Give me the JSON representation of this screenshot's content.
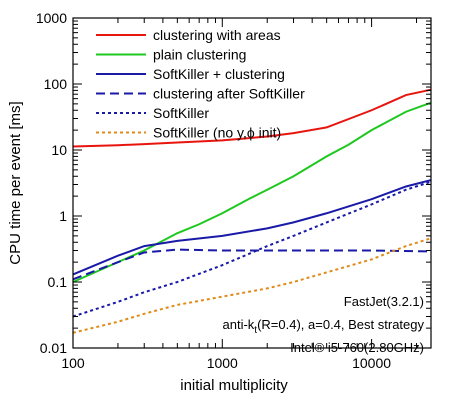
{
  "chart_data": {
    "type": "line",
    "xlabel": "initial multiplicity",
    "ylabel": "CPU time per event [ms]",
    "x_scale": "log",
    "y_scale": "log",
    "xlim": [
      100,
      25000
    ],
    "ylim": [
      0.01,
      1000
    ],
    "x_ticks": [
      100,
      1000,
      10000
    ],
    "x_tick_labels": [
      "100",
      "1000",
      "10000"
    ],
    "y_ticks": [
      0.01,
      0.1,
      1,
      10,
      100,
      1000
    ],
    "y_tick_labels": [
      "0.01",
      "0.1",
      "1",
      "10",
      "100",
      "1000"
    ],
    "grid": false,
    "legend_position": "top-right",
    "series": [
      {
        "name": "clustering with areas",
        "color": "#e8150f",
        "dash": "solid",
        "x": [
          100,
          200,
          300,
          500,
          1000,
          2000,
          3000,
          5000,
          10000,
          17000,
          25000
        ],
        "y": [
          11.3,
          11.8,
          12.3,
          13,
          14,
          16,
          18,
          22,
          40,
          68,
          82
        ]
      },
      {
        "name": "plain clustering",
        "color": "#1ec81e",
        "dash": "solid",
        "x": [
          100,
          150,
          200,
          300,
          500,
          700,
          1000,
          1500,
          2000,
          3000,
          5000,
          7000,
          10000,
          17000,
          25000
        ],
        "y": [
          0.1,
          0.15,
          0.2,
          0.3,
          0.55,
          0.75,
          1.1,
          1.8,
          2.5,
          4,
          8,
          12,
          20,
          38,
          52
        ]
      },
      {
        "name": "SoftKiller + clustering",
        "color": "#1a1aa8",
        "dash": "solid",
        "x": [
          100,
          200,
          300,
          500,
          1000,
          2000,
          3000,
          5000,
          10000,
          17000,
          25000
        ],
        "y": [
          0.13,
          0.25,
          0.35,
          0.42,
          0.5,
          0.65,
          0.8,
          1.1,
          1.8,
          2.8,
          3.5
        ]
      },
      {
        "name": "clustering after SoftKiller",
        "color": "#1a1aa8",
        "dash": "longdash",
        "x": [
          100,
          200,
          300,
          500,
          1000,
          2000,
          5000,
          10000,
          25000
        ],
        "y": [
          0.11,
          0.2,
          0.28,
          0.31,
          0.3,
          0.3,
          0.3,
          0.3,
          0.29
        ]
      },
      {
        "name": "SoftKiller",
        "color": "#1a1aa8",
        "dash": "dotted",
        "x": [
          100,
          200,
          300,
          500,
          1000,
          2000,
          3000,
          5000,
          10000,
          17000,
          25000
        ],
        "y": [
          0.03,
          0.05,
          0.07,
          0.1,
          0.18,
          0.35,
          0.5,
          0.8,
          1.5,
          2.5,
          3.3
        ]
      },
      {
        "name": "SoftKiller (no y,ϕ init)",
        "color": "#e08a1a",
        "dash": "dotted",
        "x": [
          100,
          200,
          300,
          500,
          1000,
          2000,
          3000,
          5000,
          10000,
          17000,
          25000
        ],
        "y": [
          0.017,
          0.025,
          0.033,
          0.045,
          0.06,
          0.08,
          0.1,
          0.14,
          0.22,
          0.35,
          0.46
        ]
      }
    ],
    "annotations": [
      "FastJet(3.2.1)",
      "anti-kt(R=0.4), a=0.4, Best strategy",
      "Intel® i5-760(2.80GHz)"
    ]
  }
}
